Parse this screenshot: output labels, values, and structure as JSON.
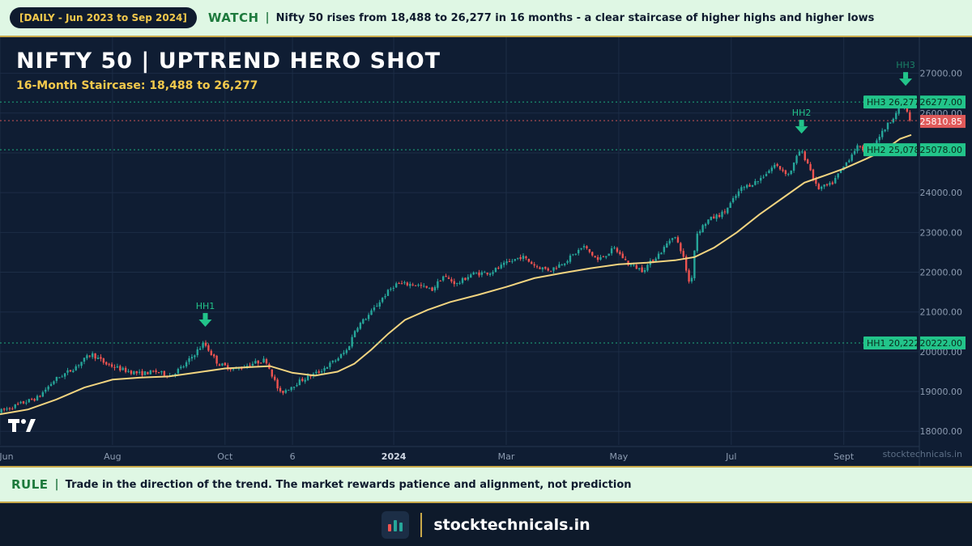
{
  "banner": {
    "date_range": "[DAILY - Jun 2023 to Sep 2024]",
    "watch_label": "WATCH",
    "separator": "|",
    "watch_text": "Nifty 50 rises from 18,488 to 26,277 in 16 months - a clear staircase of higher highs and higher lows"
  },
  "rule": {
    "label": "RULE",
    "separator": "|",
    "text": "Trade in the direction of the trend. The market rewards patience and alignment, not prediction"
  },
  "footer": {
    "site": "stocktechnicals.in"
  },
  "watermark": "stocktechnicals.in",
  "colors": {
    "up": "#26a69a",
    "down": "#ef5350",
    "ma": "#f2d480",
    "level_green": "#22c48a",
    "level_red": "#e05a5a",
    "accent": "#f2c94c",
    "banner_bg": "#dff7e4"
  },
  "chart_data": {
    "type": "candlestick",
    "title": "NIFTY 50 | UPTREND HERO SHOT",
    "subtitle": "16-Month Staircase: 18,488 to 26,277",
    "y_range": [
      17700,
      27500
    ],
    "y_ticks": [
      "18000.00",
      "19000.00",
      "20000.00",
      "21000.00",
      "22000.00",
      "23000.00",
      "24000.00",
      "25000.00",
      "26000.00",
      "27000.00"
    ],
    "y_tick_values": [
      18000,
      19000,
      20000,
      21000,
      22000,
      23000,
      24000,
      25000,
      26000,
      27000
    ],
    "x_labels": [
      {
        "label": "Jun",
        "month": 0,
        "bold": false
      },
      {
        "label": "Aug",
        "month": 2,
        "bold": false
      },
      {
        "label": "Oct",
        "month": 4,
        "bold": false
      },
      {
        "label": "6",
        "month": 5.2,
        "bold": false
      },
      {
        "label": "2024",
        "month": 7,
        "bold": true
      },
      {
        "label": "Mar",
        "month": 9,
        "bold": false
      },
      {
        "label": "May",
        "month": 11,
        "bold": false
      },
      {
        "label": "Jul",
        "month": 13,
        "bold": false
      },
      {
        "label": "Sept",
        "month": 15,
        "bold": false
      }
    ],
    "x_range_months": [
      0,
      16.2
    ],
    "price_path": [
      [
        0,
        18488
      ],
      [
        0.4,
        18700
      ],
      [
        0.7,
        18850
      ],
      [
        1.0,
        19300
      ],
      [
        1.3,
        19550
      ],
      [
        1.65,
        19950
      ],
      [
        1.9,
        19700
      ],
      [
        2.2,
        19550
      ],
      [
        2.5,
        19450
      ],
      [
        2.8,
        19500
      ],
      [
        3.05,
        19400
      ],
      [
        3.3,
        19650
      ],
      [
        3.65,
        20222
      ],
      [
        3.9,
        19700
      ],
      [
        4.2,
        19550
      ],
      [
        4.5,
        19700
      ],
      [
        4.75,
        19800
      ],
      [
        5.0,
        18950
      ],
      [
        5.4,
        19300
      ],
      [
        5.7,
        19500
      ],
      [
        6.0,
        19800
      ],
      [
        6.2,
        20050
      ],
      [
        6.35,
        20600
      ],
      [
        6.6,
        20950
      ],
      [
        6.85,
        21400
      ],
      [
        7.05,
        21700
      ],
      [
        7.4,
        21700
      ],
      [
        7.7,
        21550
      ],
      [
        7.9,
        21900
      ],
      [
        8.15,
        21700
      ],
      [
        8.4,
        21950
      ],
      [
        8.75,
        22000
      ],
      [
        9.0,
        22200
      ],
      [
        9.3,
        22400
      ],
      [
        9.55,
        22150
      ],
      [
        9.8,
        22050
      ],
      [
        10.1,
        22300
      ],
      [
        10.4,
        22650
      ],
      [
        10.65,
        22300
      ],
      [
        10.95,
        22600
      ],
      [
        11.2,
        22200
      ],
      [
        11.45,
        22050
      ],
      [
        11.8,
        22550
      ],
      [
        12.0,
        22950
      ],
      [
        12.15,
        22500
      ],
      [
        12.3,
        21600
      ],
      [
        12.4,
        22950
      ],
      [
        12.6,
        23300
      ],
      [
        12.9,
        23500
      ],
      [
        13.2,
        24100
      ],
      [
        13.5,
        24300
      ],
      [
        13.8,
        24700
      ],
      [
        14.05,
        24450
      ],
      [
        14.25,
        25078
      ],
      [
        14.4,
        24700
      ],
      [
        14.55,
        24100
      ],
      [
        14.8,
        24200
      ],
      [
        15.0,
        24600
      ],
      [
        15.25,
        25150
      ],
      [
        15.45,
        25050
      ],
      [
        15.7,
        25500
      ],
      [
        15.95,
        26000
      ],
      [
        16.1,
        26277
      ],
      [
        16.2,
        25810.85
      ]
    ],
    "ma_path": [
      [
        0,
        18430
      ],
      [
        0.5,
        18550
      ],
      [
        1.0,
        18800
      ],
      [
        1.5,
        19100
      ],
      [
        2.0,
        19300
      ],
      [
        2.5,
        19350
      ],
      [
        3.0,
        19380
      ],
      [
        3.5,
        19480
      ],
      [
        4.0,
        19580
      ],
      [
        4.5,
        19620
      ],
      [
        4.8,
        19640
      ],
      [
        5.2,
        19470
      ],
      [
        5.6,
        19400
      ],
      [
        6.0,
        19500
      ],
      [
        6.3,
        19700
      ],
      [
        6.6,
        20050
      ],
      [
        6.9,
        20450
      ],
      [
        7.2,
        20800
      ],
      [
        7.6,
        21050
      ],
      [
        8.0,
        21250
      ],
      [
        8.5,
        21430
      ],
      [
        9.0,
        21630
      ],
      [
        9.5,
        21850
      ],
      [
        10.0,
        21980
      ],
      [
        10.5,
        22100
      ],
      [
        11.0,
        22200
      ],
      [
        11.5,
        22240
      ],
      [
        12.0,
        22300
      ],
      [
        12.35,
        22380
      ],
      [
        12.7,
        22620
      ],
      [
        13.1,
        23000
      ],
      [
        13.5,
        23450
      ],
      [
        13.9,
        23850
      ],
      [
        14.3,
        24250
      ],
      [
        14.6,
        24400
      ],
      [
        15.0,
        24600
      ],
      [
        15.4,
        24850
      ],
      [
        15.7,
        25050
      ],
      [
        16.0,
        25350
      ],
      [
        16.2,
        25450
      ]
    ],
    "levels": [
      {
        "name": "HH1",
        "label": "HH1 20,222",
        "value": 20222,
        "axis_label": "20222.00",
        "month": 3.65
      },
      {
        "name": "HH2",
        "label": "HH2 25,078",
        "value": 25078,
        "axis_label": "25078.00",
        "month": 14.25
      },
      {
        "name": "HH3",
        "label": "HH3 26,277",
        "value": 26277,
        "axis_label": "26277.00",
        "month": 16.1
      }
    ],
    "last_price": {
      "value": 25810.85,
      "axis_label": "25810.85"
    },
    "markers": [
      "HH1",
      "HH2",
      "HH3"
    ]
  }
}
